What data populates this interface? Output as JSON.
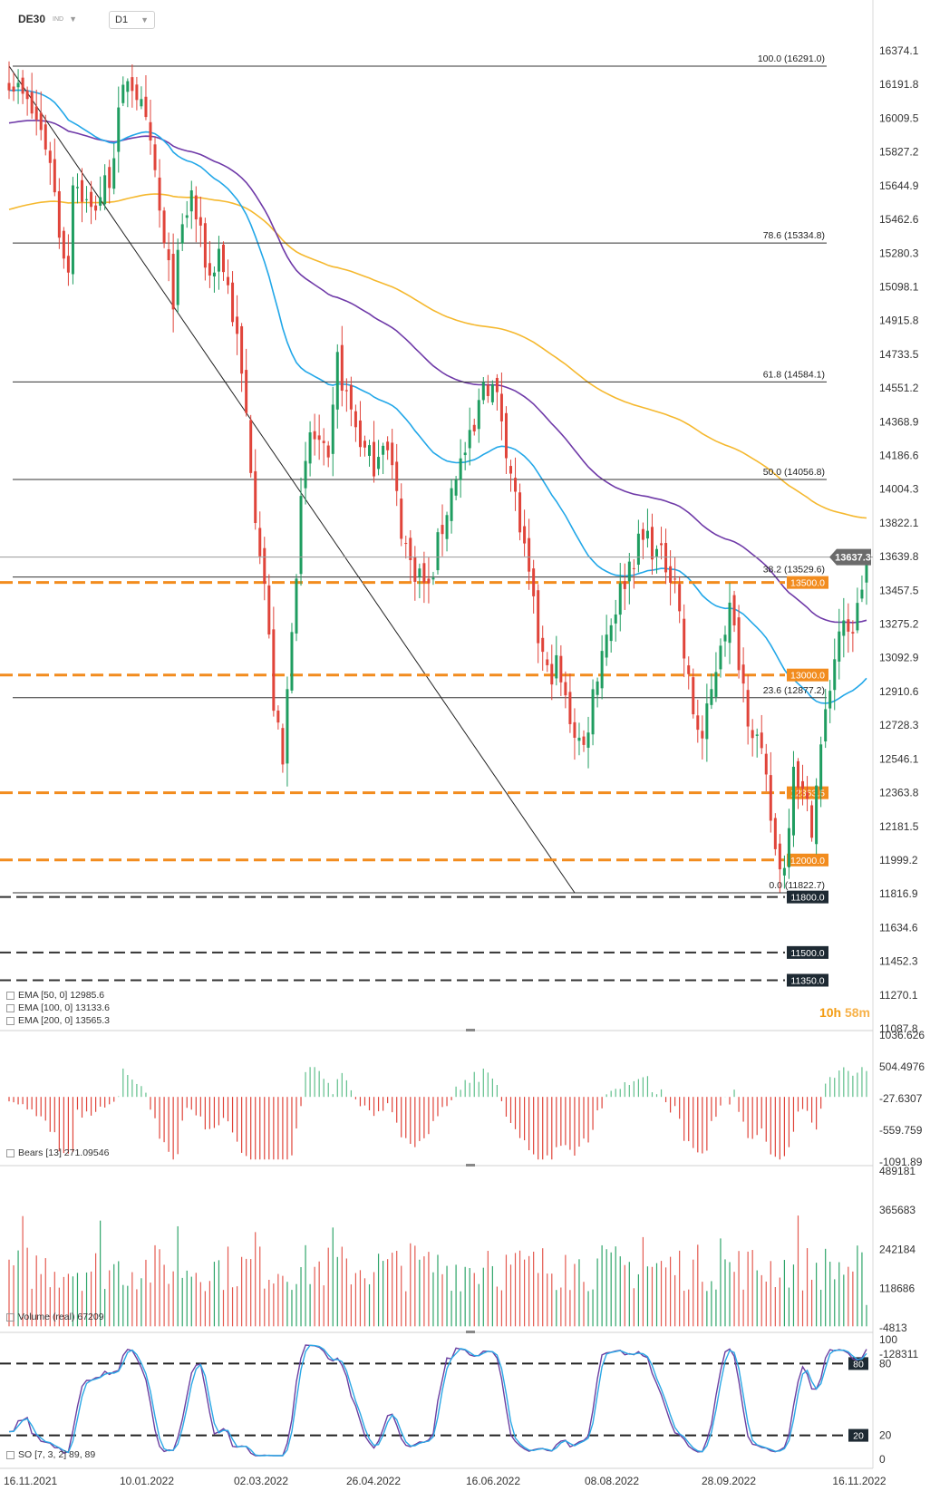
{
  "header": {
    "symbol": "DE30",
    "symbol_type": "IND",
    "timeframe": "D1"
  },
  "timer": {
    "hours": "10h",
    "minutes": "58m"
  },
  "indicator_legends": {
    "ema": [
      "EMA [50, 0]  12985.6",
      "EMA [100, 0]  13133.6",
      "EMA [200, 0]  13565.3"
    ],
    "bears": "Bears [13]  271.09546",
    "volume": "Volume  (real)  67209",
    "so": "SO [7, 3, 2]  89, 89"
  },
  "colors": {
    "bull": "#1f9d60",
    "bear": "#e0443a",
    "ema50": "#22a7e8",
    "ema100": "#6f3aa8",
    "ema200": "#f5b82e",
    "level": "#f28c1e",
    "fib": "#333333",
    "price": "#6b6b6b"
  },
  "chart_data": [
    {
      "type": "candlestick",
      "title": "DE30",
      "x_ticks": [
        "16.11.2021",
        "10.01.2022",
        "02.03.2022",
        "26.04.2022",
        "16.06.2022",
        "08.08.2022",
        "28.09.2022",
        "16.11.2022"
      ],
      "y_ticks": [
        "16374.1",
        "16191.8",
        "16009.5",
        "15827.2",
        "15644.9",
        "15462.6",
        "15280.3",
        "15098.1",
        "14915.8",
        "14733.5",
        "14551.2",
        "14368.9",
        "14186.6",
        "14004.3",
        "13822.1",
        "13639.8",
        "13457.5",
        "13275.2",
        "13092.9",
        "12910.6",
        "12728.3",
        "12546.1",
        "12363.8",
        "12181.5",
        "11999.2",
        "11816.9",
        "11634.6",
        "11452.3",
        "11270.1",
        "11087.8"
      ],
      "ylim": [
        11087.8,
        16374.1
      ],
      "close_path": [
        [
          0,
          16240
        ],
        [
          3,
          16120
        ],
        [
          6,
          16000
        ],
        [
          9,
          15800
        ],
        [
          11,
          15400
        ],
        [
          13,
          15200
        ],
        [
          14,
          15700
        ],
        [
          16,
          15600
        ],
        [
          18,
          15500
        ],
        [
          20,
          15600
        ],
        [
          22,
          15700
        ],
        [
          24,
          16000
        ],
        [
          26,
          16250
        ],
        [
          28,
          16150
        ],
        [
          30,
          15950
        ],
        [
          32,
          15700
        ],
        [
          34,
          15300
        ],
        [
          36,
          15050
        ],
        [
          38,
          15400
        ],
        [
          40,
          15600
        ],
        [
          42,
          15350
        ],
        [
          44,
          15150
        ],
        [
          46,
          15300
        ],
        [
          48,
          15100
        ],
        [
          50,
          14800
        ],
        [
          52,
          14400
        ],
        [
          54,
          13900
        ],
        [
          56,
          13500
        ],
        [
          58,
          12850
        ],
        [
          60,
          12500
        ],
        [
          62,
          13300
        ],
        [
          64,
          13900
        ],
        [
          66,
          14300
        ],
        [
          68,
          14250
        ],
        [
          70,
          14100
        ],
        [
          72,
          14700
        ],
        [
          74,
          14500
        ],
        [
          76,
          14350
        ],
        [
          78,
          14200
        ],
        [
          80,
          14150
        ],
        [
          82,
          14300
        ],
        [
          84,
          14100
        ],
        [
          86,
          13800
        ],
        [
          88,
          13600
        ],
        [
          90,
          13550
        ],
        [
          92,
          13450
        ],
        [
          94,
          13700
        ],
        [
          96,
          13900
        ],
        [
          98,
          14100
        ],
        [
          100,
          14200
        ],
        [
          102,
          14300
        ],
        [
          104,
          14600
        ],
        [
          106,
          14550
        ],
        [
          108,
          14400
        ],
        [
          110,
          14100
        ],
        [
          112,
          13800
        ],
        [
          114,
          13500
        ],
        [
          116,
          13200
        ],
        [
          118,
          13000
        ],
        [
          120,
          13050
        ],
        [
          122,
          12850
        ],
        [
          124,
          12700
        ],
        [
          126,
          12600
        ],
        [
          128,
          12900
        ],
        [
          130,
          13150
        ],
        [
          132,
          13300
        ],
        [
          134,
          13450
        ],
        [
          136,
          13600
        ],
        [
          138,
          13700
        ],
        [
          140,
          13750
        ],
        [
          142,
          13650
        ],
        [
          144,
          13600
        ],
        [
          146,
          13550
        ],
        [
          148,
          13100
        ],
        [
          150,
          12800
        ],
        [
          152,
          12650
        ],
        [
          154,
          12900
        ],
        [
          156,
          13200
        ],
        [
          158,
          13350
        ],
        [
          160,
          13100
        ],
        [
          162,
          12800
        ],
        [
          164,
          12650
        ],
        [
          166,
          12400
        ],
        [
          168,
          12050
        ],
        [
          170,
          11950
        ],
        [
          172,
          12550
        ],
        [
          174,
          12350
        ],
        [
          176,
          12200
        ],
        [
          178,
          12600
        ],
        [
          180,
          12950
        ],
        [
          182,
          13250
        ],
        [
          184,
          13200
        ],
        [
          186,
          13350
        ],
        [
          188,
          13637.3
        ]
      ],
      "moving_averages": [
        {
          "name": "EMA [50, 0]",
          "last": 12985.6
        },
        {
          "name": "EMA [100, 0]",
          "last": 13133.6
        },
        {
          "name": "EMA [200, 0]",
          "last": 13565.3
        }
      ],
      "last_price": "13637.3",
      "fibonacci": [
        {
          "label": "100.0 (16291.0)",
          "value": 16291.0
        },
        {
          "label": "78.6 (15334.8)",
          "value": 15334.8
        },
        {
          "label": "61.8 (14584.1)",
          "value": 14584.1
        },
        {
          "label": "50.0 (14056.8)",
          "value": 14056.8
        },
        {
          "label": "38.2 (13529.6)",
          "value": 13529.6
        },
        {
          "label": "23.6 (12877.2)",
          "value": 12877.2
        },
        {
          "label": "0.0 (11822.7)",
          "value": 11822.7
        }
      ],
      "levels": [
        {
          "label": "13500.0",
          "value": 13500.0,
          "style": "orange"
        },
        {
          "label": "13000.0",
          "value": 13000.0,
          "style": "orange"
        },
        {
          "label": "12363.5",
          "value": 12363.5,
          "style": "orange"
        },
        {
          "label": "12000.0",
          "value": 12000.0,
          "style": "orange"
        },
        {
          "label": "11800.0",
          "value": 11800.0,
          "style": "black"
        },
        {
          "label": "11500.0",
          "value": 11500.0,
          "style": "black"
        },
        {
          "label": "11350.0",
          "value": 11350.0,
          "style": "black"
        }
      ],
      "trendline": {
        "from": [
          0,
          16291.0
        ],
        "to": [
          148,
          11822.7
        ]
      }
    },
    {
      "type": "bar",
      "title": "Bears [13]",
      "last": 271.09546,
      "y_ticks": [
        "1036.626",
        "504.4976",
        "-27.6307",
        "-559.759",
        "-1091.89"
      ],
      "ylim": [
        -1091.89,
        1036.626
      ]
    },
    {
      "type": "bar",
      "title": "Volume (real)",
      "last": 67209,
      "y_ticks": [
        "489181",
        "365683",
        "242184",
        "118686",
        "-4813"
      ],
      "ylim": [
        -4813,
        489181
      ]
    },
    {
      "type": "line",
      "title": "SO [7, 3, 2]",
      "last": "89, 89",
      "y_ticks": [
        "100",
        "80",
        "20",
        "0"
      ],
      "ylim": [
        0,
        100
      ],
      "levels": [
        "80",
        "20"
      ],
      "bottom_tick": "-128311"
    }
  ]
}
